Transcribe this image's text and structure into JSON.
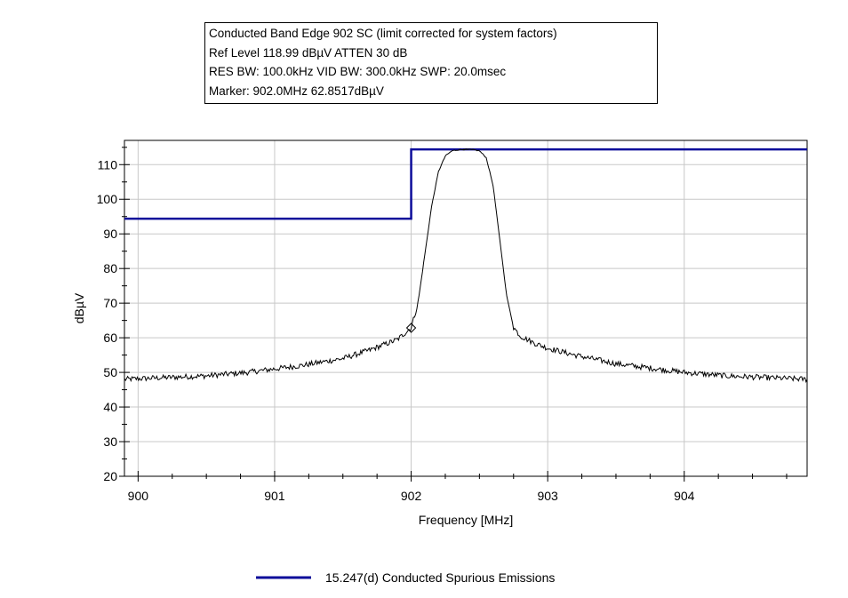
{
  "header": {
    "line1": "Conducted Band Edge 902 SC (limit corrected for system factors)",
    "line2": "Ref Level 118.99 dBµV    ATTEN 30 dB",
    "line3": "RES BW: 100.0kHz  VID BW: 300.0kHz  SWP: 20.0msec",
    "line4": "Marker: 902.0MHz  62.8517dBµV"
  },
  "legend": {
    "limit_label": "15.247(d) Conducted Spurious Emissions"
  },
  "colors": {
    "limit_line": "#0c0c9a",
    "trace": "#000000",
    "grid": "#c8c8c8"
  },
  "chart_data": {
    "type": "line",
    "xlabel": "Frequency [MHz]",
    "ylabel": "dBµV",
    "xlim": [
      899.9,
      904.9
    ],
    "ylim": [
      20,
      117
    ],
    "x_ticks": [
      900,
      901,
      902,
      903,
      904
    ],
    "y_ticks": [
      20,
      30,
      40,
      50,
      60,
      70,
      80,
      90,
      100,
      110
    ],
    "grid": true,
    "legend_position": "bottom",
    "series": [
      {
        "name": "15.247(d) Conducted Spurious Emissions",
        "kind": "limit",
        "x": [
          899.9,
          902.0,
          902.0,
          904.9
        ],
        "y": [
          94.4,
          94.4,
          114.4,
          114.4
        ]
      },
      {
        "kind": "trace",
        "x": [
          899.9,
          900.2,
          900.5,
          900.8,
          901.0,
          901.2,
          901.5,
          901.7,
          901.9,
          902.0,
          902.05,
          902.1,
          902.15,
          902.2,
          902.25,
          902.3,
          902.35,
          902.4,
          902.45,
          902.5,
          902.55,
          902.6,
          902.65,
          902.7,
          902.75,
          902.8,
          902.85,
          902.9,
          903.0,
          903.2,
          903.5,
          903.8,
          904.0,
          904.3,
          904.6,
          904.9
        ],
        "y": [
          48,
          48.5,
          49,
          50,
          51,
          52,
          54,
          56.5,
          59.5,
          62.9,
          70,
          84,
          98,
          108,
          112.5,
          114,
          114.3,
          114.4,
          114.3,
          114,
          112,
          104,
          88,
          72,
          63,
          60.5,
          59.5,
          58.5,
          57,
          55,
          52.5,
          51,
          50,
          49,
          48.5,
          48
        ]
      }
    ],
    "marker": {
      "x": 902.0,
      "y": 62.8517
    }
  }
}
